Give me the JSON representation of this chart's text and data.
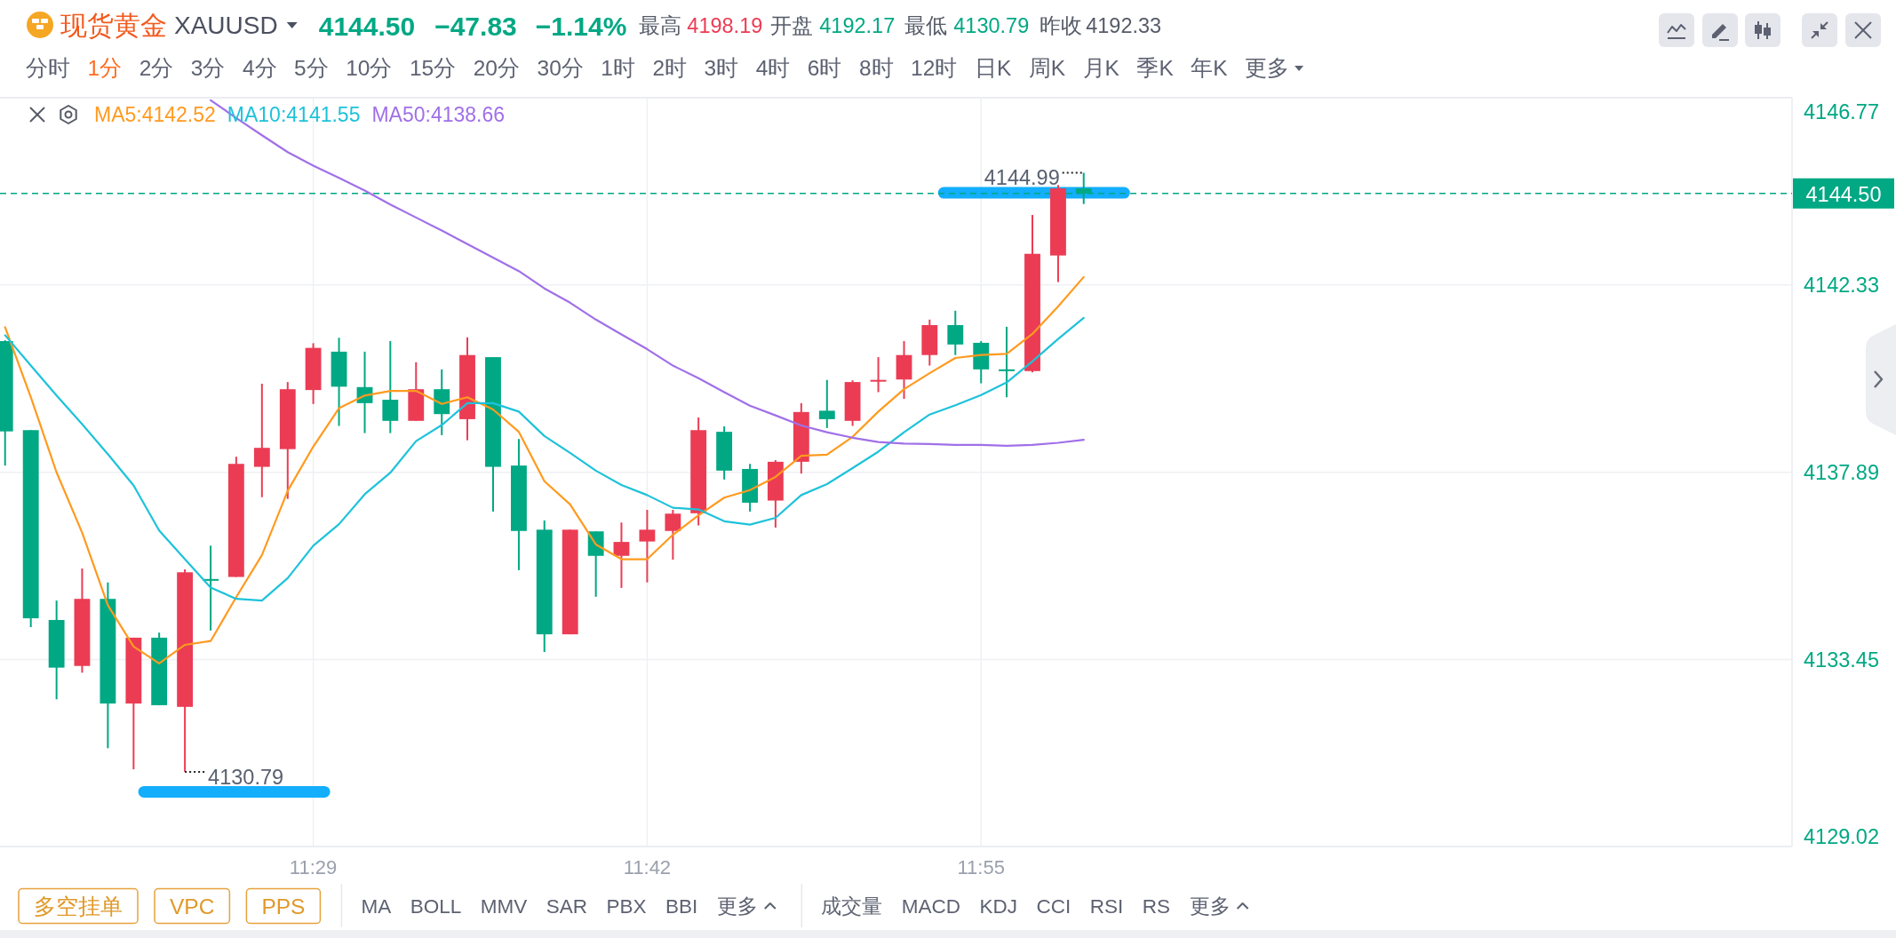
{
  "chart_data": {
    "type": "candlestick",
    "title": "现货黄金",
    "subtitle": "XAUUSD",
    "annotations": [
      "4144.50",
      "−47.83",
      "−1.14%",
      "最高",
      "4198.19",
      "开盘",
      "4192.17",
      "最低",
      "4130.79",
      "昨收",
      "4192.33",
      "分时",
      "1分",
      "2分",
      "3分",
      "4分",
      "5分",
      "10分",
      "15分",
      "20分",
      "30分",
      "1时",
      "2时",
      "3时",
      "4时",
      "6时",
      "8时",
      "12时",
      "日K",
      "周K",
      "月K",
      "季K",
      "年K",
      "更多",
      "多空挂单",
      "VPC",
      "PPS",
      "MA",
      "BOLL",
      "MMV",
      "SAR",
      "PBX",
      "BBI",
      "更多",
      "成交量",
      "MACD",
      "KDJ",
      "CCI",
      "RSI",
      "RS",
      "更多",
      {
        "text": "4144.99",
        "x": 11.9833,
        "y": 4144.99
      },
      {
        "text": "4130.79",
        "x": 11.4,
        "y": 4130.79
      },
      {
        "text": "4144.50",
        "x": 12.443,
        "y": 4144.5
      }
    ],
    "x": [
      11.2833,
      11.3,
      11.3167,
      11.3333,
      11.35,
      11.3667,
      11.3833,
      11.4,
      11.4167,
      11.4333,
      11.45,
      11.4667,
      11.4833,
      11.5,
      11.5167,
      11.5333,
      11.55,
      11.5667,
      11.5833,
      11.6,
      11.6167,
      11.6333,
      11.65,
      11.6667,
      11.6833,
      11.7,
      11.7167,
      11.7333,
      11.75,
      11.7667,
      11.7833,
      11.8,
      11.8167,
      11.8333,
      11.85,
      11.8667,
      11.8833,
      11.9,
      11.9167,
      11.9333,
      11.95,
      11.9667,
      11.9833
    ],
    "xlim": [
      11.28,
      12.443
    ],
    "xticks": [
      {
        "value": 11.4833,
        "label": "11:29"
      },
      {
        "value": 11.7,
        "label": "11:42"
      },
      {
        "value": 11.9167,
        "label": "11:55"
      }
    ],
    "ylim": [
      4129.02,
      4146.77
    ],
    "yticks": [
      4129.02,
      4133.45,
      4137.89,
      4142.33,
      4146.77
    ],
    "ohlc": [
      [
        4141.0,
        4141.02,
        4138.05,
        4138.86
      ],
      [
        4138.89,
        4138.89,
        4134.22,
        4134.43
      ],
      [
        4134.39,
        4134.85,
        4132.51,
        4133.26
      ],
      [
        4133.3,
        4135.61,
        4133.14,
        4134.89
      ],
      [
        4134.89,
        4135.28,
        4131.35,
        4132.41
      ],
      [
        4132.41,
        4133.97,
        4130.85,
        4133.97
      ],
      [
        4133.97,
        4134.09,
        4132.37,
        4132.37
      ],
      [
        4132.33,
        4135.59,
        4130.79,
        4135.52
      ],
      [
        4135.35,
        4136.15,
        4134.14,
        4135.33
      ],
      [
        4135.41,
        4138.26,
        4135.41,
        4138.09
      ],
      [
        4138.02,
        4139.99,
        4137.3,
        4138.47
      ],
      [
        4138.44,
        4140.03,
        4137.26,
        4139.86
      ],
      [
        4139.84,
        4140.95,
        4139.51,
        4140.84
      ],
      [
        4140.75,
        4141.08,
        4138.99,
        4139.92
      ],
      [
        4139.91,
        4140.75,
        4138.82,
        4139.53
      ],
      [
        4139.61,
        4141.0,
        4138.82,
        4139.11
      ],
      [
        4139.11,
        4140.5,
        4139.11,
        4139.86
      ],
      [
        4139.86,
        4140.33,
        4138.77,
        4139.27
      ],
      [
        4139.15,
        4141.09,
        4138.65,
        4140.67
      ],
      [
        4140.62,
        4140.62,
        4136.96,
        4138.02
      ],
      [
        4138.05,
        4138.68,
        4135.57,
        4136.5
      ],
      [
        4136.53,
        4136.75,
        4133.63,
        4134.05
      ],
      [
        4134.05,
        4136.53,
        4134.05,
        4136.53
      ],
      [
        4136.49,
        4136.49,
        4134.94,
        4135.91
      ],
      [
        4135.91,
        4136.7,
        4135.15,
        4136.24
      ],
      [
        4136.25,
        4137.0,
        4135.28,
        4136.53
      ],
      [
        4136.5,
        4137.0,
        4135.82,
        4136.91
      ],
      [
        4136.92,
        4139.19,
        4136.63,
        4138.89
      ],
      [
        4138.85,
        4138.98,
        4137.72,
        4137.93
      ],
      [
        4137.97,
        4138.09,
        4136.96,
        4137.17
      ],
      [
        4137.22,
        4138.18,
        4136.58,
        4138.14
      ],
      [
        4138.14,
        4139.53,
        4137.86,
        4139.32
      ],
      [
        4139.35,
        4140.08,
        4138.94,
        4139.15
      ],
      [
        4139.11,
        4140.07,
        4138.99,
        4140.03
      ],
      [
        4140.05,
        4140.62,
        4139.79,
        4140.07
      ],
      [
        4140.09,
        4141.0,
        4139.63,
        4140.67
      ],
      [
        4140.67,
        4141.51,
        4140.42,
        4141.38
      ],
      [
        4141.38,
        4141.72,
        4140.67,
        4140.92
      ],
      [
        4140.96,
        4141.0,
        4140.0,
        4140.33
      ],
      [
        4140.32,
        4141.34,
        4139.67,
        4140.3
      ],
      [
        4140.29,
        4143.99,
        4140.26,
        4143.07
      ],
      [
        4143.03,
        4144.7,
        4142.4,
        4144.62
      ],
      [
        4144.62,
        4144.99,
        4144.25,
        4144.5
      ]
    ],
    "colors": [
      "#00a884",
      "#00a884",
      "#00a884",
      "#eb3c54",
      "#00a884",
      "#eb3c54",
      "#00a884",
      "#eb3c54",
      "#00a884",
      "#eb3c54",
      "#eb3c54",
      "#eb3c54",
      "#eb3c54",
      "#00a884",
      "#00a884",
      "#00a884",
      "#eb3c54",
      "#00a884",
      "#eb3c54",
      "#00a884",
      "#00a884",
      "#00a884",
      "#eb3c54",
      "#00a884",
      "#eb3c54",
      "#eb3c54",
      "#eb3c54",
      "#eb3c54",
      "#00a884",
      "#00a884",
      "#eb3c54",
      "#eb3c54",
      "#00a884",
      "#eb3c54",
      "#eb3c54",
      "#eb3c54",
      "#eb3c54",
      "#00a884",
      "#00a884",
      "#00a884",
      "#eb3c54",
      "#eb3c54",
      "#00a884"
    ],
    "series": [
      {
        "type": "line",
        "name": "MA5:4142.52",
        "color": "#ff9a1f",
        "values": [
          4141.33,
          4139.67,
          4137.89,
          4136.46,
          4134.74,
          4133.76,
          4133.36,
          4133.8,
          4133.89,
          4134.93,
          4135.93,
          4137.45,
          4138.5,
          4139.41,
          4139.71,
          4139.82,
          4139.82,
          4139.51,
          4139.67,
          4139.38,
          4138.85,
          4137.68,
          4137.13,
          4136.18,
          4135.83,
          4135.83,
          4136.41,
          4136.87,
          4137.29,
          4137.47,
          4137.78,
          4138.28,
          4138.31,
          4138.73,
          4139.33,
          4139.86,
          4140.24,
          4140.6,
          4140.67,
          4140.7,
          4141.17,
          4141.82,
          4142.52
        ]
      },
      {
        "type": "line",
        "name": "MA10:4141.55",
        "color": "#1ec2da",
        "values": [
          4141.14,
          4140.42,
          4139.71,
          4139.03,
          4138.32,
          4137.58,
          4136.51,
          4135.83,
          4135.16,
          4134.89,
          4134.85,
          4135.38,
          4136.15,
          4136.66,
          4137.37,
          4137.88,
          4138.63,
          4139.01,
          4139.53,
          4139.53,
          4139.33,
          4138.75,
          4138.35,
          4137.93,
          4137.59,
          4137.35,
          4137.05,
          4137.01,
          4136.73,
          4136.65,
          4136.81,
          4137.35,
          4137.61,
          4137.99,
          4138.38,
          4138.84,
          4139.26,
          4139.48,
          4139.72,
          4140.02,
          4140.52,
          4141.05,
          4141.55
        ]
      },
      {
        "type": "line",
        "name": "MA50:4138.66",
        "color": "#a070e8",
        "values": [
          null,
          null,
          null,
          null,
          null,
          null,
          null,
          null,
          4146.71,
          4146.29,
          4145.88,
          4145.48,
          4145.16,
          4144.87,
          4144.57,
          4144.24,
          4143.93,
          4143.62,
          4143.3,
          4142.98,
          4142.66,
          4142.25,
          4141.91,
          4141.51,
          4141.16,
          4140.81,
          4140.42,
          4140.12,
          4139.79,
          4139.47,
          4139.24,
          4139.0,
          4138.84,
          4138.71,
          4138.61,
          4138.57,
          4138.56,
          4138.54,
          4138.54,
          4138.52,
          4138.54,
          4138.59,
          4138.66
        ]
      }
    ],
    "ref_lines": [
      {
        "axis": "y",
        "value": 4144.5,
        "color": "#00a884",
        "line_style": "dashed"
      }
    ],
    "grid": true,
    "legend": "top left"
  }
}
